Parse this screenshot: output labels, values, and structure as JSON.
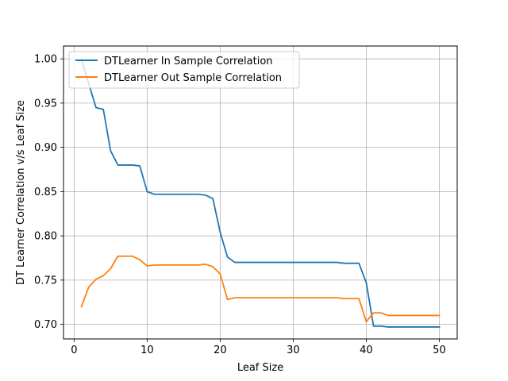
{
  "chart_data": {
    "type": "line",
    "title": "",
    "xlabel": "Leaf Size",
    "ylabel": "DT Learner Correlation v/s Leaf Size",
    "xlim": [
      -1.45,
      52.45
    ],
    "ylim": [
      0.6835,
      1.0145
    ],
    "xticks": [
      0,
      10,
      20,
      30,
      40,
      50
    ],
    "yticks": [
      0.7,
      0.75,
      0.8,
      0.85,
      0.9,
      0.95,
      1.0
    ],
    "ytick_labels": [
      "0.70",
      "0.75",
      "0.80",
      "0.85",
      "0.90",
      "0.95",
      "1.00"
    ],
    "grid": true,
    "legend_position": "top-left",
    "x": [
      1,
      2,
      3,
      4,
      5,
      6,
      7,
      8,
      9,
      10,
      11,
      12,
      13,
      14,
      15,
      16,
      17,
      18,
      19,
      20,
      21,
      22,
      23,
      24,
      25,
      26,
      27,
      28,
      29,
      30,
      31,
      32,
      33,
      34,
      35,
      36,
      37,
      38,
      39,
      40,
      41,
      42,
      43,
      44,
      45,
      46,
      47,
      48,
      49,
      50
    ],
    "series": [
      {
        "name": "DTLearner In Sample Correlation",
        "color": "#1f77b4",
        "values": [
          1.0,
          0.972,
          0.945,
          0.943,
          0.896,
          0.88,
          0.88,
          0.88,
          0.879,
          0.85,
          0.847,
          0.847,
          0.847,
          0.847,
          0.847,
          0.847,
          0.847,
          0.846,
          0.842,
          0.804,
          0.776,
          0.77,
          0.77,
          0.77,
          0.77,
          0.77,
          0.77,
          0.77,
          0.77,
          0.77,
          0.77,
          0.77,
          0.77,
          0.77,
          0.77,
          0.77,
          0.769,
          0.769,
          0.769,
          0.747,
          0.698,
          0.698,
          0.697,
          0.697,
          0.697,
          0.697,
          0.697,
          0.697,
          0.697,
          0.697
        ]
      },
      {
        "name": "DTLearner Out Sample Correlation",
        "color": "#ff7f0e",
        "values": [
          0.72,
          0.742,
          0.751,
          0.755,
          0.763,
          0.777,
          0.777,
          0.777,
          0.773,
          0.766,
          0.767,
          0.767,
          0.767,
          0.767,
          0.767,
          0.767,
          0.767,
          0.768,
          0.765,
          0.757,
          0.728,
          0.73,
          0.73,
          0.73,
          0.73,
          0.73,
          0.73,
          0.73,
          0.73,
          0.73,
          0.73,
          0.73,
          0.73,
          0.73,
          0.73,
          0.73,
          0.729,
          0.729,
          0.729,
          0.703,
          0.713,
          0.713,
          0.71,
          0.71,
          0.71,
          0.71,
          0.71,
          0.71,
          0.71,
          0.71
        ]
      }
    ]
  }
}
